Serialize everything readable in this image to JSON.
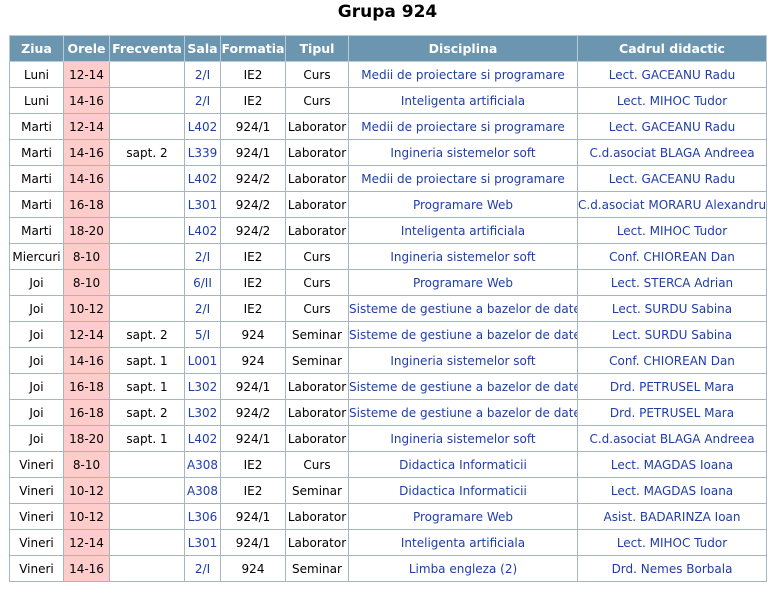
{
  "title": "Grupa 924",
  "headers": [
    "Ziua",
    "Orele",
    "Frecventa",
    "Sala",
    "Formatia",
    "Tipul",
    "Disciplina",
    "Cadrul didactic"
  ],
  "rows": [
    {
      "day": "Luni",
      "hours": "12-14",
      "freq": "",
      "room": "2/I",
      "formation": "IE2",
      "type": "Curs",
      "subject": "Medii de proiectare si programare",
      "teacher": "Lect. GACEANU Radu"
    },
    {
      "day": "Luni",
      "hours": "14-16",
      "freq": "",
      "room": "2/I",
      "formation": "IE2",
      "type": "Curs",
      "subject": "Inteligenta artificiala",
      "teacher": "Lect. MIHOC Tudor"
    },
    {
      "day": "Marti",
      "hours": "12-14",
      "freq": "",
      "room": "L402",
      "formation": "924/1",
      "type": "Laborator",
      "subject": "Medii de proiectare si programare",
      "teacher": "Lect. GACEANU Radu"
    },
    {
      "day": "Marti",
      "hours": "14-16",
      "freq": "sapt. 2",
      "room": "L339",
      "formation": "924/1",
      "type": "Laborator",
      "subject": "Ingineria sistemelor soft",
      "teacher": "C.d.asociat BLAGA Andreea"
    },
    {
      "day": "Marti",
      "hours": "14-16",
      "freq": "",
      "room": "L402",
      "formation": "924/2",
      "type": "Laborator",
      "subject": "Medii de proiectare si programare",
      "teacher": "Lect. GACEANU Radu"
    },
    {
      "day": "Marti",
      "hours": "16-18",
      "freq": "",
      "room": "L301",
      "formation": "924/2",
      "type": "Laborator",
      "subject": "Programare Web",
      "teacher": "C.d.asociat MORARU Alexandru"
    },
    {
      "day": "Marti",
      "hours": "18-20",
      "freq": "",
      "room": "L402",
      "formation": "924/2",
      "type": "Laborator",
      "subject": "Inteligenta artificiala",
      "teacher": "Lect. MIHOC Tudor"
    },
    {
      "day": "Miercuri",
      "hours": "8-10",
      "freq": "",
      "room": "2/I",
      "formation": "IE2",
      "type": "Curs",
      "subject": "Ingineria sistemelor soft",
      "teacher": "Conf. CHIOREAN Dan"
    },
    {
      "day": "Joi",
      "hours": "8-10",
      "freq": "",
      "room": "6/II",
      "formation": "IE2",
      "type": "Curs",
      "subject": "Programare Web",
      "teacher": "Lect. STERCA Adrian"
    },
    {
      "day": "Joi",
      "hours": "10-12",
      "freq": "",
      "room": "2/I",
      "formation": "IE2",
      "type": "Curs",
      "subject": "Sisteme de gestiune a bazelor de date",
      "teacher": "Lect. SURDU Sabina"
    },
    {
      "day": "Joi",
      "hours": "12-14",
      "freq": "sapt. 2",
      "room": "5/I",
      "formation": "924",
      "type": "Seminar",
      "subject": "Sisteme de gestiune a bazelor de date",
      "teacher": "Lect. SURDU Sabina"
    },
    {
      "day": "Joi",
      "hours": "14-16",
      "freq": "sapt. 1",
      "room": "L001",
      "formation": "924",
      "type": "Seminar",
      "subject": "Ingineria sistemelor soft",
      "teacher": "Conf. CHIOREAN Dan"
    },
    {
      "day": "Joi",
      "hours": "16-18",
      "freq": "sapt. 1",
      "room": "L302",
      "formation": "924/1",
      "type": "Laborator",
      "subject": "Sisteme de gestiune a bazelor de date",
      "teacher": "Drd. PETRUSEL Mara"
    },
    {
      "day": "Joi",
      "hours": "16-18",
      "freq": "sapt. 2",
      "room": "L302",
      "formation": "924/2",
      "type": "Laborator",
      "subject": "Sisteme de gestiune a bazelor de date",
      "teacher": "Drd. PETRUSEL Mara"
    },
    {
      "day": "Joi",
      "hours": "18-20",
      "freq": "sapt. 1",
      "room": "L402",
      "formation": "924/1",
      "type": "Laborator",
      "subject": "Ingineria sistemelor soft",
      "teacher": "C.d.asociat BLAGA Andreea"
    },
    {
      "day": "Vineri",
      "hours": "8-10",
      "freq": "",
      "room": "A308",
      "formation": "IE2",
      "type": "Curs",
      "subject": "Didactica Informaticii",
      "teacher": "Lect. MAGDAS Ioana"
    },
    {
      "day": "Vineri",
      "hours": "10-12",
      "freq": "",
      "room": "A308",
      "formation": "IE2",
      "type": "Seminar",
      "subject": "Didactica Informaticii",
      "teacher": "Lect. MAGDAS Ioana"
    },
    {
      "day": "Vineri",
      "hours": "10-12",
      "freq": "",
      "room": "L306",
      "formation": "924/1",
      "type": "Laborator",
      "subject": "Programare Web",
      "teacher": "Asist. BADARINZA Ioan"
    },
    {
      "day": "Vineri",
      "hours": "12-14",
      "freq": "",
      "room": "L301",
      "formation": "924/1",
      "type": "Laborator",
      "subject": "Inteligenta artificiala",
      "teacher": "Lect. MIHOC Tudor"
    },
    {
      "day": "Vineri",
      "hours": "14-16",
      "freq": "",
      "room": "2/I",
      "formation": "924",
      "type": "Seminar",
      "subject": "Limba engleza (2)",
      "teacher": "Drd. Nemes Borbala"
    }
  ],
  "colors": {
    "header_bg": "#6c96b0",
    "hours_bg": "#ffcccc",
    "link": "#1f3ea5"
  }
}
